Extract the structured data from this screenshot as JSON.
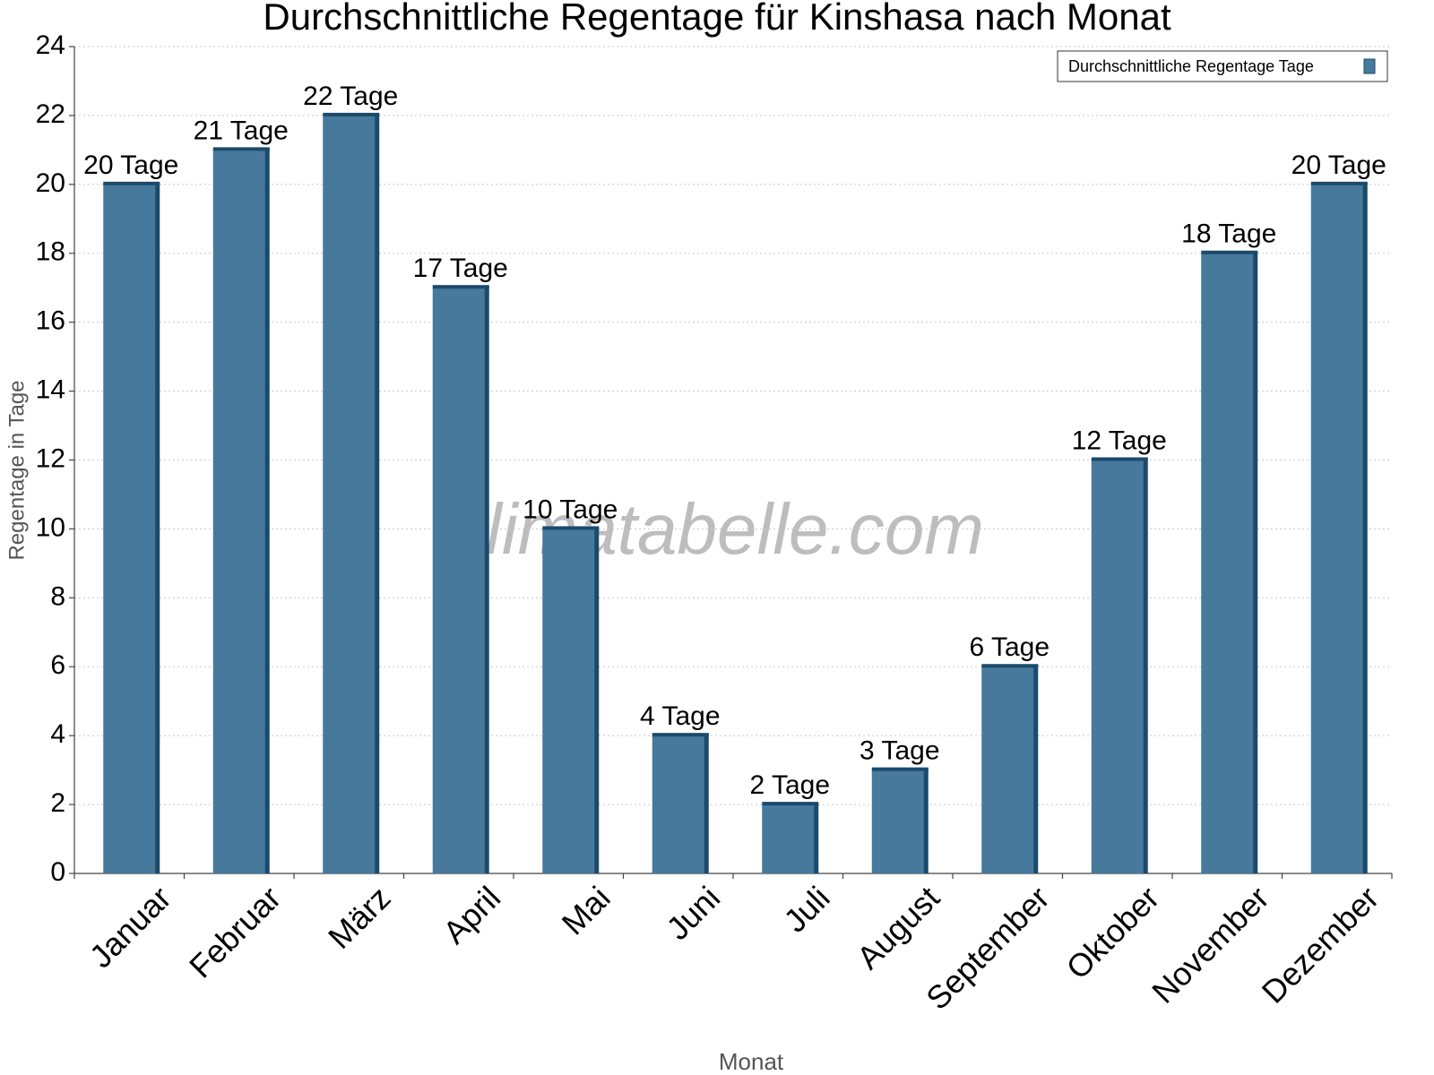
{
  "chart_data": {
    "type": "bar",
    "title": "Durchschnittliche Regentage für Kinshasa nach Monat",
    "watermark": "klimatabelle.com",
    "x_label": "Monat",
    "y_label": "Regentage in Tage",
    "categories": [
      "Januar",
      "Februar",
      "März",
      "April",
      "Mai",
      "Juni",
      "Juli",
      "August",
      "September",
      "Oktober",
      "November",
      "Dezember"
    ],
    "series": [
      {
        "name": "Durchschnittliche Regentage Tage",
        "color": "#46799c",
        "values": [
          20,
          21,
          22,
          17,
          10,
          4,
          2,
          3,
          6,
          12,
          18,
          20
        ],
        "value_labels": [
          "20 Tage",
          "21 Tage",
          "22 Tage",
          "17 Tage",
          "10 Tage",
          "4 Tage",
          "2 Tage",
          "3 Tage",
          "6 Tage",
          "12 Tage",
          "18 Tage",
          "20 Tage"
        ]
      }
    ],
    "ylim": [
      0,
      24
    ],
    "yticks": [
      0,
      2,
      4,
      6,
      8,
      10,
      12,
      14,
      16,
      18,
      20,
      22,
      24
    ],
    "grid": true,
    "legend": "top-right"
  }
}
